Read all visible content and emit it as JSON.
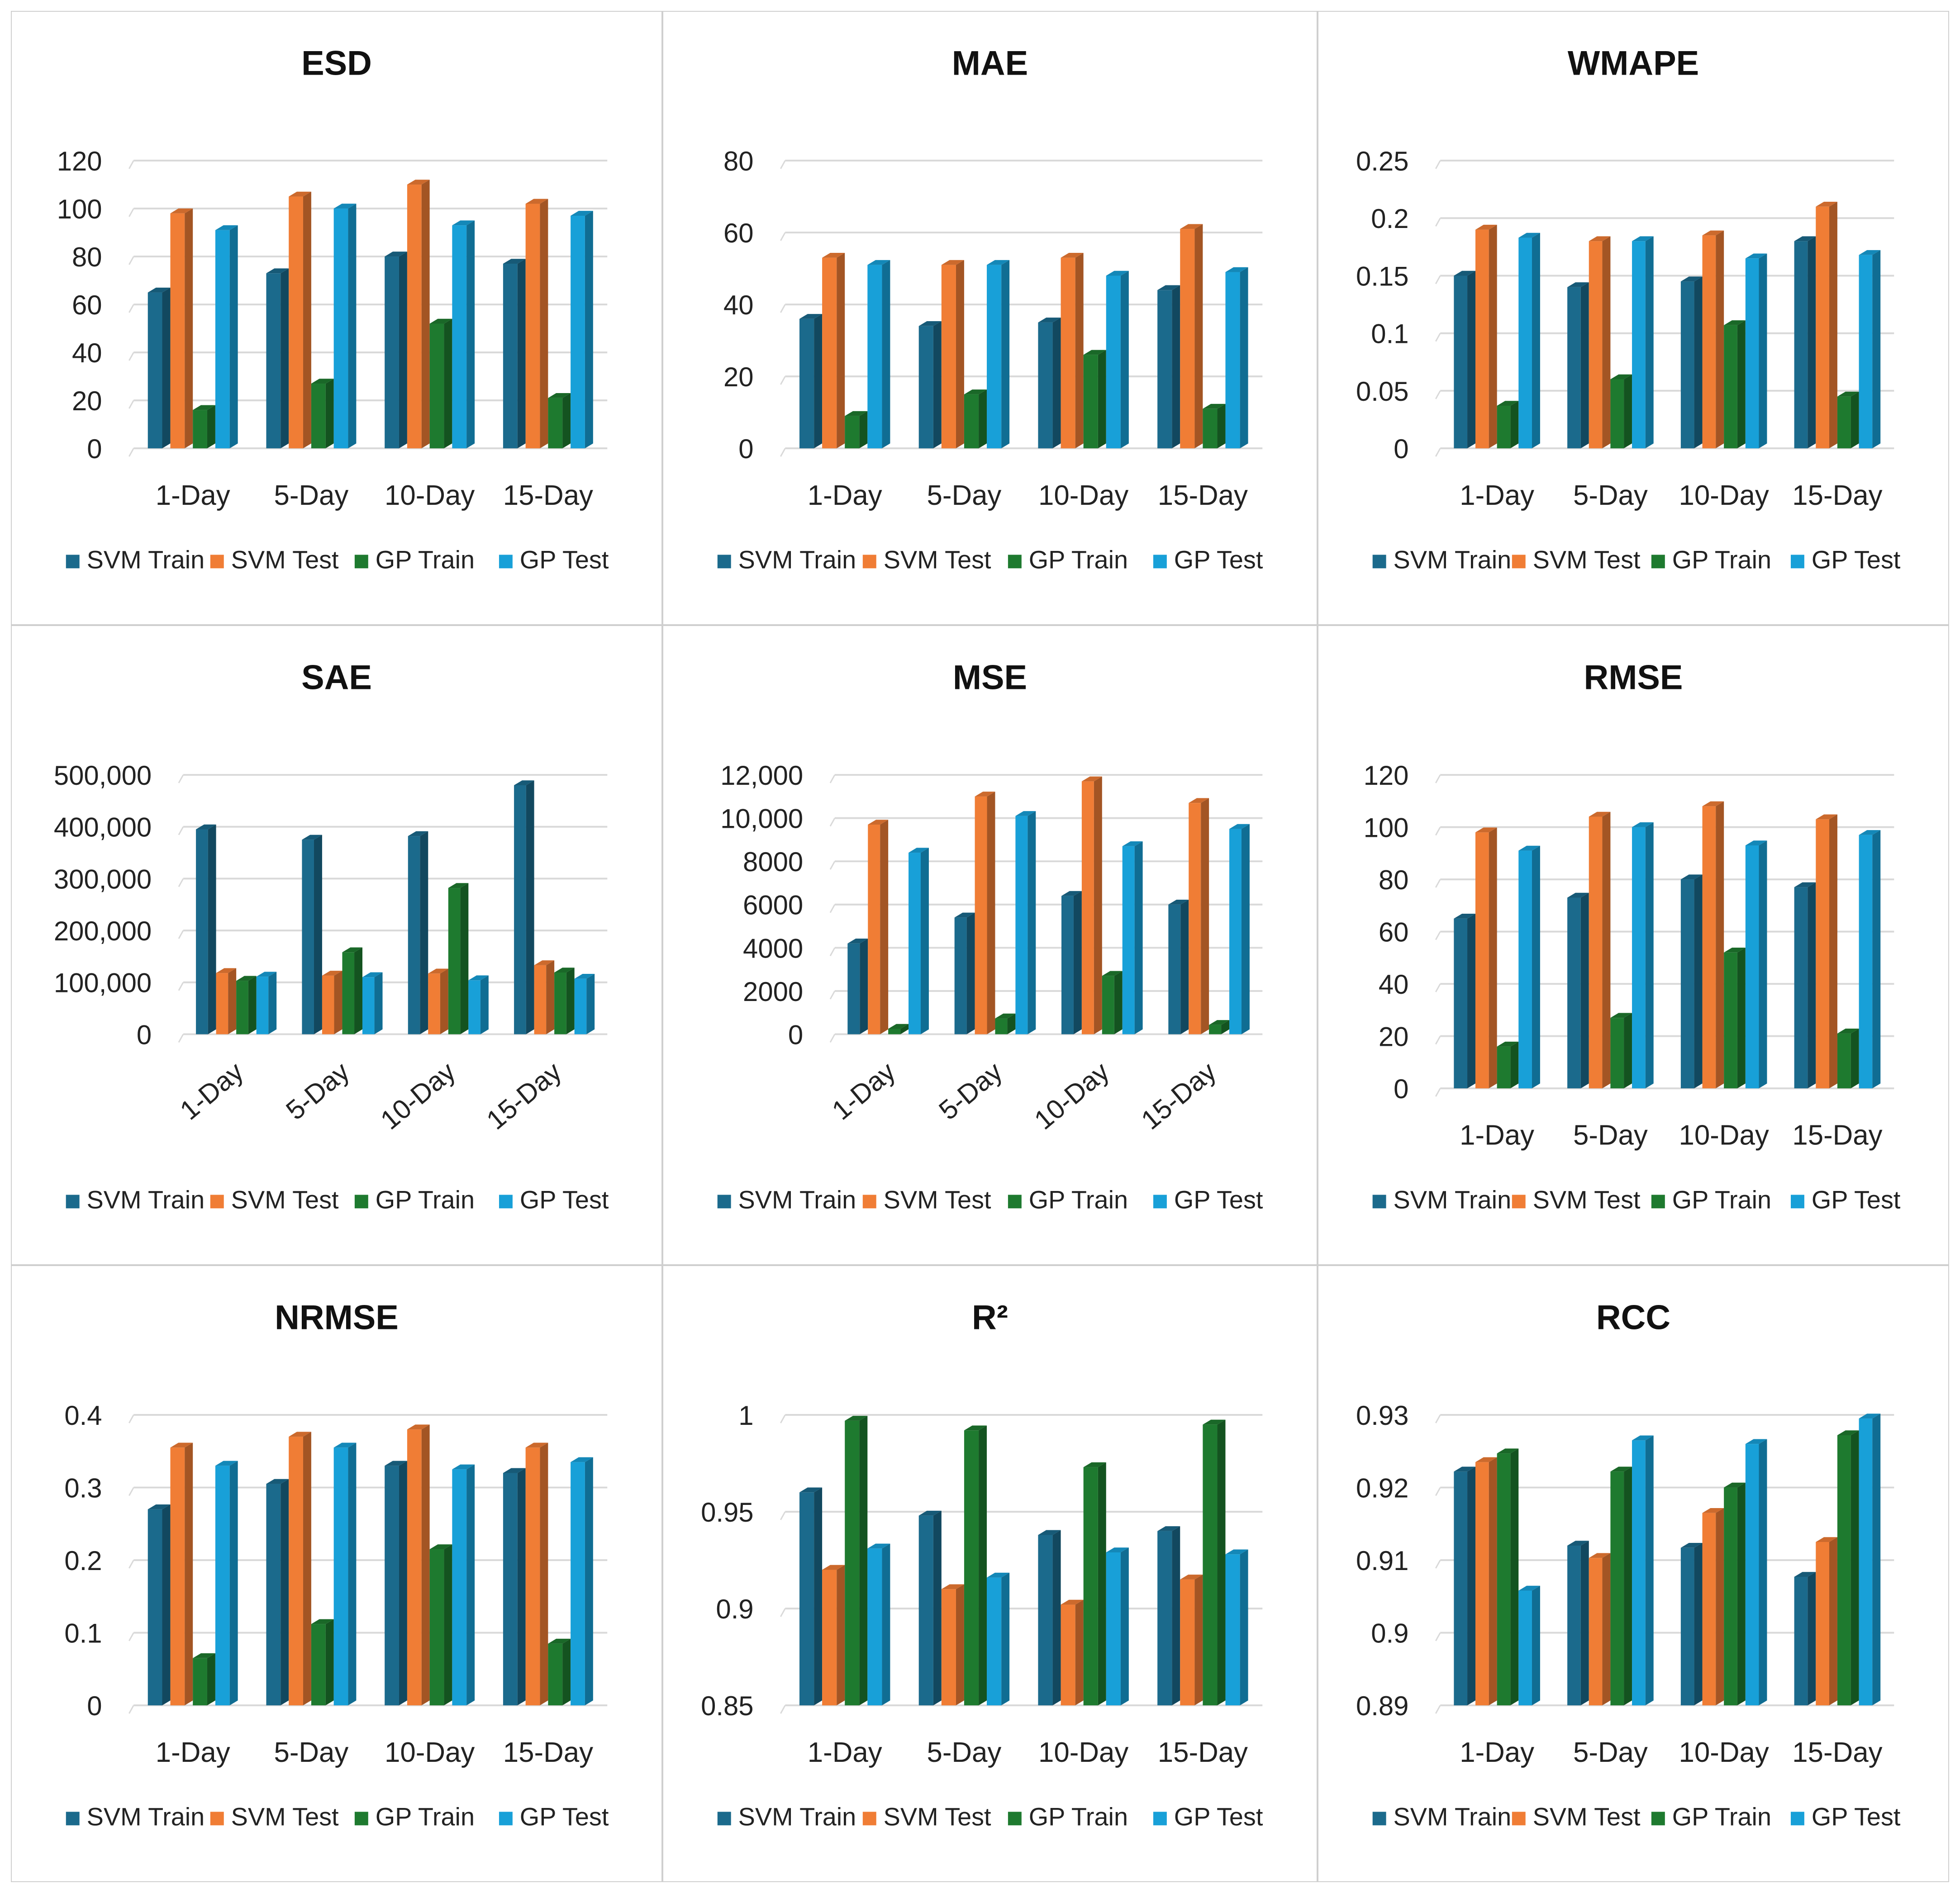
{
  "legend": [
    "SVM Train",
    "SVM Test",
    "GP Train",
    "GP Test"
  ],
  "colors": {
    "svm_train": "#1b6a8c",
    "svm_test": "#f07d35",
    "gp_train": "#1e7a2f",
    "gp_test": "#18a0d8",
    "grid": "#d9d9d9"
  },
  "chart_data": [
    {
      "type": "bar",
      "title": "ESD",
      "categories": [
        "1-Day",
        "5-Day",
        "10-Day",
        "15-Day"
      ],
      "yticks": [
        "0",
        "20",
        "40",
        "60",
        "80",
        "100",
        "120"
      ],
      "ylim": [
        0,
        120
      ],
      "series": [
        {
          "name": "SVM Train",
          "values": [
            65,
            73,
            80,
            77
          ]
        },
        {
          "name": "SVM Test",
          "values": [
            98,
            105,
            110,
            102
          ]
        },
        {
          "name": "GP Train",
          "values": [
            16,
            27,
            52,
            21
          ]
        },
        {
          "name": "GP Test",
          "values": [
            91,
            100,
            93,
            97
          ]
        }
      ]
    },
    {
      "type": "bar",
      "title": "MAE",
      "categories": [
        "1-Day",
        "5-Day",
        "10-Day",
        "15-Day"
      ],
      "yticks": [
        "0",
        "20",
        "40",
        "60",
        "80"
      ],
      "ylim": [
        0,
        80
      ],
      "series": [
        {
          "name": "SVM Train",
          "values": [
            36,
            34,
            35,
            44
          ]
        },
        {
          "name": "SVM Test",
          "values": [
            53,
            51,
            53,
            61
          ]
        },
        {
          "name": "GP Train",
          "values": [
            9,
            15,
            26,
            11
          ]
        },
        {
          "name": "GP Test",
          "values": [
            51,
            51,
            48,
            49
          ]
        }
      ]
    },
    {
      "type": "bar",
      "title": "WMAPE",
      "categories": [
        "1-Day",
        "5-Day",
        "10-Day",
        "15-Day"
      ],
      "yticks": [
        "0",
        "0.05",
        "0.1",
        "0.15",
        "0.2",
        "0.25"
      ],
      "ylim": [
        0,
        0.25
      ],
      "series": [
        {
          "name": "SVM Train",
          "values": [
            0.15,
            0.14,
            0.145,
            0.18
          ]
        },
        {
          "name": "SVM Test",
          "values": [
            0.19,
            0.18,
            0.185,
            0.21
          ]
        },
        {
          "name": "GP Train",
          "values": [
            0.037,
            0.06,
            0.107,
            0.045
          ]
        },
        {
          "name": "GP Test",
          "values": [
            0.183,
            0.18,
            0.165,
            0.168
          ]
        }
      ]
    },
    {
      "type": "bar",
      "title": "SAE",
      "categories": [
        "1-Day",
        "5-Day",
        "10-Day",
        "15-Day"
      ],
      "rotate_labels": true,
      "yticks": [
        "0",
        "100,000",
        "200,000",
        "300,000",
        "400,000",
        "500,000"
      ],
      "ylim": [
        0,
        500000
      ],
      "series": [
        {
          "name": "SVM Train",
          "values": [
            395000,
            375000,
            382000,
            480000
          ]
        },
        {
          "name": "SVM Test",
          "values": [
            118000,
            113000,
            117000,
            133000
          ]
        },
        {
          "name": "GP Train",
          "values": [
            103000,
            158000,
            282000,
            119000
          ]
        },
        {
          "name": "GP Test",
          "values": [
            111000,
            110000,
            104000,
            107000
          ]
        }
      ]
    },
    {
      "type": "bar",
      "title": "MSE",
      "categories": [
        "1-Day",
        "5-Day",
        "10-Day",
        "15-Day"
      ],
      "rotate_labels": true,
      "yticks": [
        "0",
        "2000",
        "4000",
        "6000",
        "8000",
        "10,000",
        "12,000"
      ],
      "ylim": [
        0,
        12000
      ],
      "series": [
        {
          "name": "SVM Train",
          "values": [
            4200,
            5400,
            6400,
            6000
          ]
        },
        {
          "name": "SVM Test",
          "values": [
            9700,
            11000,
            11700,
            10700
          ]
        },
        {
          "name": "GP Train",
          "values": [
            250,
            730,
            2700,
            430
          ]
        },
        {
          "name": "GP Test",
          "values": [
            8400,
            10100,
            8700,
            9500
          ]
        }
      ]
    },
    {
      "type": "bar",
      "title": "RMSE",
      "categories": [
        "1-Day",
        "5-Day",
        "10-Day",
        "15-Day"
      ],
      "yticks": [
        "0",
        "20",
        "40",
        "60",
        "80",
        "100",
        "120"
      ],
      "ylim": [
        0,
        120
      ],
      "series": [
        {
          "name": "SVM Train",
          "values": [
            65,
            73,
            80,
            77
          ]
        },
        {
          "name": "SVM Test",
          "values": [
            98,
            104,
            108,
            103
          ]
        },
        {
          "name": "GP Train",
          "values": [
            16,
            27,
            52,
            21
          ]
        },
        {
          "name": "GP Test",
          "values": [
            91,
            100,
            93,
            97
          ]
        }
      ]
    },
    {
      "type": "bar",
      "title": "NRMSE",
      "categories": [
        "1-Day",
        "5-Day",
        "10-Day",
        "15-Day"
      ],
      "yticks": [
        "0",
        "0.1",
        "0.2",
        "0.3",
        "0.4"
      ],
      "ylim": [
        0,
        0.4
      ],
      "series": [
        {
          "name": "SVM Train",
          "values": [
            0.27,
            0.305,
            0.33,
            0.32
          ]
        },
        {
          "name": "SVM Test",
          "values": [
            0.355,
            0.37,
            0.38,
            0.355
          ]
        },
        {
          "name": "GP Train",
          "values": [
            0.065,
            0.112,
            0.215,
            0.085
          ]
        },
        {
          "name": "GP Test",
          "values": [
            0.33,
            0.355,
            0.325,
            0.335
          ]
        }
      ]
    },
    {
      "type": "bar",
      "title": "R²",
      "categories": [
        "1-Day",
        "5-Day",
        "10-Day",
        "15-Day"
      ],
      "yticks": [
        "0.85",
        "0.9",
        "0.95",
        "1"
      ],
      "ylim": [
        0.85,
        1
      ],
      "series": [
        {
          "name": "SVM Train",
          "values": [
            0.96,
            0.948,
            0.938,
            0.94
          ]
        },
        {
          "name": "SVM Test",
          "values": [
            0.92,
            0.91,
            0.902,
            0.915
          ]
        },
        {
          "name": "GP Train",
          "values": [
            0.997,
            0.992,
            0.973,
            0.995
          ]
        },
        {
          "name": "GP Test",
          "values": [
            0.931,
            0.916,
            0.929,
            0.928
          ]
        }
      ]
    },
    {
      "type": "bar",
      "title": "RCC",
      "categories": [
        "1-Day",
        "5-Day",
        "10-Day",
        "15-Day"
      ],
      "yticks": [
        "0.89",
        "0.9",
        "0.91",
        "0.92",
        "0.93"
      ],
      "ylim": [
        0.89,
        0.93
      ],
      "series": [
        {
          "name": "SVM Train",
          "values": [
            0.9222,
            0.912,
            0.9117,
            0.9077
          ]
        },
        {
          "name": "SVM Test",
          "values": [
            0.9235,
            0.9103,
            0.9165,
            0.9125
          ]
        },
        {
          "name": "GP Train",
          "values": [
            0.9247,
            0.9222,
            0.92,
            0.9272
          ]
        },
        {
          "name": "GP Test",
          "values": [
            0.9058,
            0.9265,
            0.926,
            0.9295
          ]
        }
      ]
    }
  ]
}
